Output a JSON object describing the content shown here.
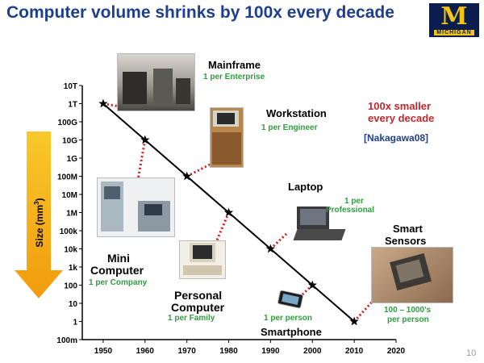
{
  "header": {
    "title": "Computer volume shrinks by 100x every decade",
    "logo_text": "MICHIGAN",
    "logo_letter": "M",
    "page_number": "10"
  },
  "callout": {
    "line1": "100x smaller",
    "line2": "every decade",
    "citation": "[Nakagawa08]"
  },
  "labels": {
    "mainframe": "Mainframe",
    "mainframe_sub": "1 per Enterprise",
    "workstation": "Workstation",
    "workstation_sub": "1 per Engineer",
    "laptop": "Laptop",
    "laptop_sub1": "1 per",
    "laptop_sub2": "Professional",
    "smart1": "Smart",
    "smart2": "Sensors",
    "smart_sub1": "100 – 1000’s",
    "smart_sub2": "per person",
    "mini1": "Mini",
    "mini2": "Computer",
    "mini_sub": "1 per Company",
    "pc1": "Personal",
    "pc2": "Computer",
    "pc_sub": "1 per Family",
    "phone": "Smartphone",
    "phone_sub": "1 per person"
  },
  "colors": {
    "title": "#1f3f8c",
    "green": "#2f9e3f",
    "red_dots": "#cc1f1f",
    "arrow": "#f7b718",
    "callout_red": "#c0272d"
  },
  "chart_data": {
    "type": "line",
    "title": "",
    "xlabel": "",
    "ylabel": "Size (mm",
    "ylabel_sup": "3",
    "ylabel_close": ")",
    "x_ticks": [
      "1950",
      "1960",
      "1970",
      "1980",
      "1990",
      "2000",
      "2010",
      "2020"
    ],
    "y_ticks": [
      "100m",
      "1",
      "10",
      "100",
      "1k",
      "10k",
      "100k",
      "1M",
      "10M",
      "100M",
      "1G",
      "10G",
      "100G",
      "1T",
      "10T"
    ],
    "y_scale": "log",
    "xlim": [
      1945,
      2020
    ],
    "ylim": [
      0.1,
      10000000000000
    ],
    "series": [
      {
        "x": [
          1950,
          1960,
          1970,
          1980,
          1990,
          2000,
          2010
        ],
        "y": [
          1000000000000,
          10000000000,
          100000000,
          1000000,
          10000,
          100,
          1
        ]
      }
    ],
    "marker": "star",
    "grid": false
  }
}
